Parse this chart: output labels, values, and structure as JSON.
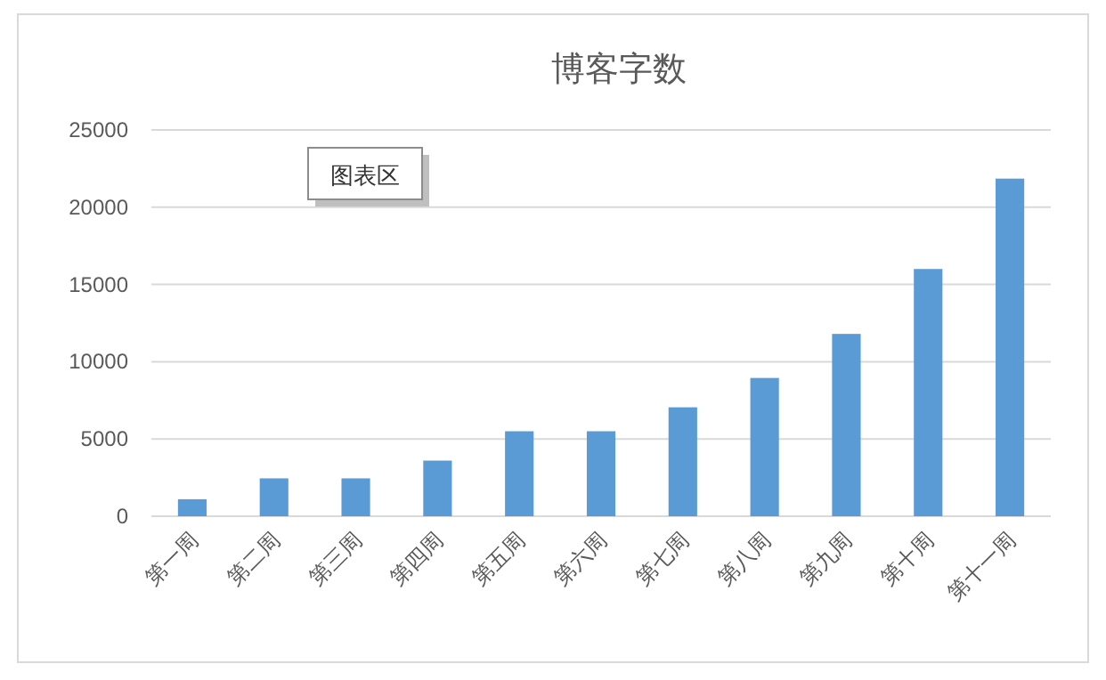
{
  "chart_data": {
    "type": "bar",
    "title": "博客字数",
    "categories": [
      "第一周",
      "第二周",
      "第三周",
      "第四周",
      "第五周",
      "第六周",
      "第七周",
      "第八周",
      "第九周",
      "第十周",
      "第十一周"
    ],
    "values": [
      1100,
      2450,
      2450,
      3600,
      5500,
      5500,
      7050,
      8950,
      11800,
      16000,
      21850
    ],
    "color": "#5b9bd5",
    "ylim": [
      0,
      25000
    ],
    "yticks": [
      0,
      5000,
      10000,
      15000,
      20000,
      25000
    ],
    "grid": "y",
    "annotations": [
      "图表区"
    ]
  }
}
